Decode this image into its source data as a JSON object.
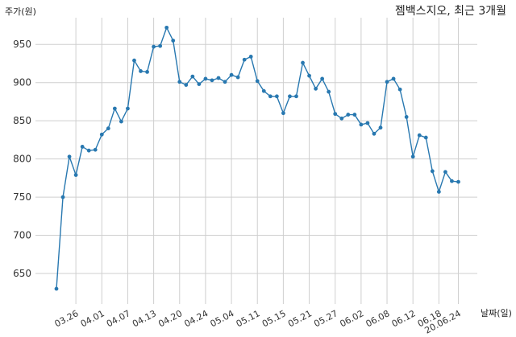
{
  "chart_data": {
    "type": "line",
    "title": "젬백스지오, 최근 3개월",
    "ylabel": "주가(원)",
    "xlabel": "날짜(일)",
    "ylim": [
      610,
      985
    ],
    "yticks": [
      650,
      700,
      750,
      800,
      850,
      900,
      950
    ],
    "grid": true,
    "line_color": "#2878b0",
    "x_ticks": [
      {
        "label": "03.26",
        "index": 3
      },
      {
        "label": "04.01",
        "index": 7
      },
      {
        "label": "04.07",
        "index": 11
      },
      {
        "label": "04.13",
        "index": 15
      },
      {
        "label": "04.20",
        "index": 19
      },
      {
        "label": "04.24",
        "index": 23
      },
      {
        "label": "05.04",
        "index": 27
      },
      {
        "label": "05.11",
        "index": 31
      },
      {
        "label": "05.15",
        "index": 35
      },
      {
        "label": "05.21",
        "index": 39
      },
      {
        "label": "05.27",
        "index": 43
      },
      {
        "label": "06.02",
        "index": 47
      },
      {
        "label": "06.08",
        "index": 51
      },
      {
        "label": "06.12",
        "index": 55
      },
      {
        "label": "06.18",
        "index": 59
      },
      {
        "label": "20.06.24",
        "index": 62
      }
    ],
    "values": [
      630,
      750,
      803,
      779,
      816,
      811,
      812,
      832,
      840,
      866,
      849,
      866,
      929,
      915,
      914,
      947,
      948,
      972,
      955,
      901,
      897,
      908,
      898,
      905,
      903,
      906,
      901,
      910,
      907,
      930,
      934,
      902,
      889,
      882,
      882,
      860,
      882,
      882,
      926,
      909,
      892,
      905,
      888,
      859,
      853,
      858,
      858,
      845,
      847,
      833,
      841,
      901,
      905,
      891,
      855,
      803,
      831,
      828,
      784,
      757,
      783,
      771,
      770
    ]
  }
}
